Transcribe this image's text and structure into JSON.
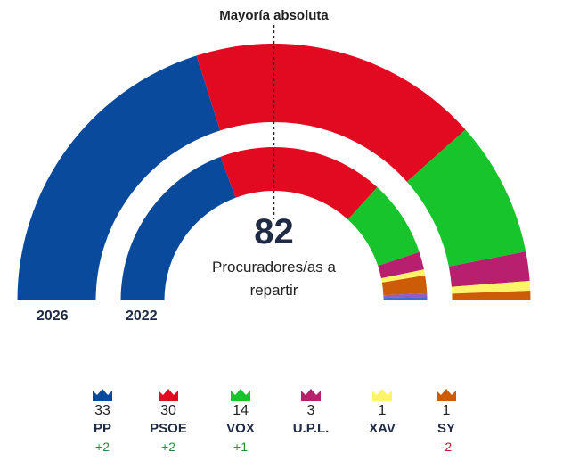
{
  "chart_data": {
    "type": "parliament-semicircle",
    "majority_label": "Mayoría absoluta",
    "total_seats": "82",
    "total_caption": "Procuradores/as a repartir",
    "rings": [
      {
        "year": "2026",
        "seats": [
          33,
          30,
          14,
          3,
          1,
          1
        ]
      },
      {
        "year": "2022",
        "seats": [
          31,
          28,
          13,
          3,
          1,
          3
        ]
      }
    ],
    "parties": [
      {
        "name": "PP",
        "seats": "33",
        "change": "+2",
        "color": "#0a4a9c",
        "change_color": "#2e8b3e"
      },
      {
        "name": "PSOE",
        "seats": "30",
        "change": "+2",
        "color": "#e20a20",
        "change_color": "#2e8b3e"
      },
      {
        "name": "VOX",
        "seats": "14",
        "change": "+1",
        "color": "#17c42c",
        "change_color": "#2e8b3e"
      },
      {
        "name": "U.P.L.",
        "seats": "3",
        "change": "",
        "color": "#b8206e",
        "change_color": "#2e8b3e"
      },
      {
        "name": "XAV",
        "seats": "1",
        "change": "",
        "color": "#fff36a",
        "change_color": "#2e8b3e"
      },
      {
        "name": "SY",
        "seats": "1",
        "change": "-2",
        "color": "#cc5c08",
        "change_color": "#b22222"
      }
    ],
    "extra_segments_2022": [
      {
        "color": "#8f5fc7",
        "seats": 0.6
      },
      {
        "color": "#3b6fd1",
        "seats": 0.6
      }
    ]
  }
}
